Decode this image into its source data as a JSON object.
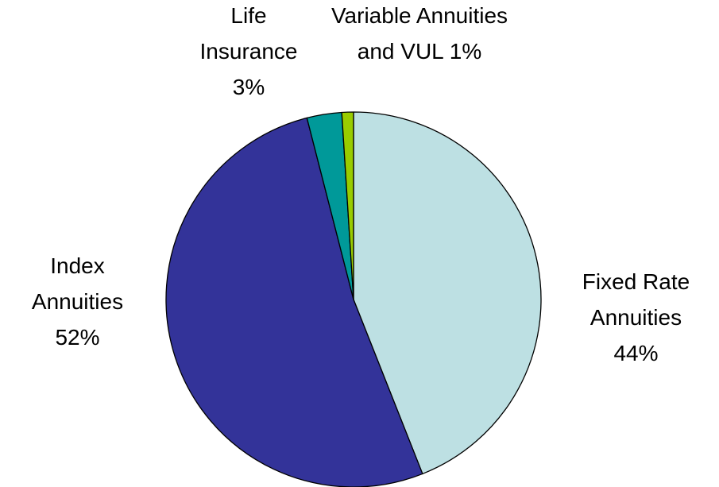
{
  "chart_data": {
    "type": "pie",
    "categories": [
      "Fixed Rate Annuities",
      "Index Annuities",
      "Life Insurance",
      "Variable Annuities and VUL"
    ],
    "values": [
      44,
      52,
      3,
      1
    ],
    "value_labels": [
      "44%",
      "52%",
      "3%",
      "1%"
    ],
    "colors": [
      "#bde0e3",
      "#333399",
      "#009999",
      "#99cc00"
    ]
  }
}
